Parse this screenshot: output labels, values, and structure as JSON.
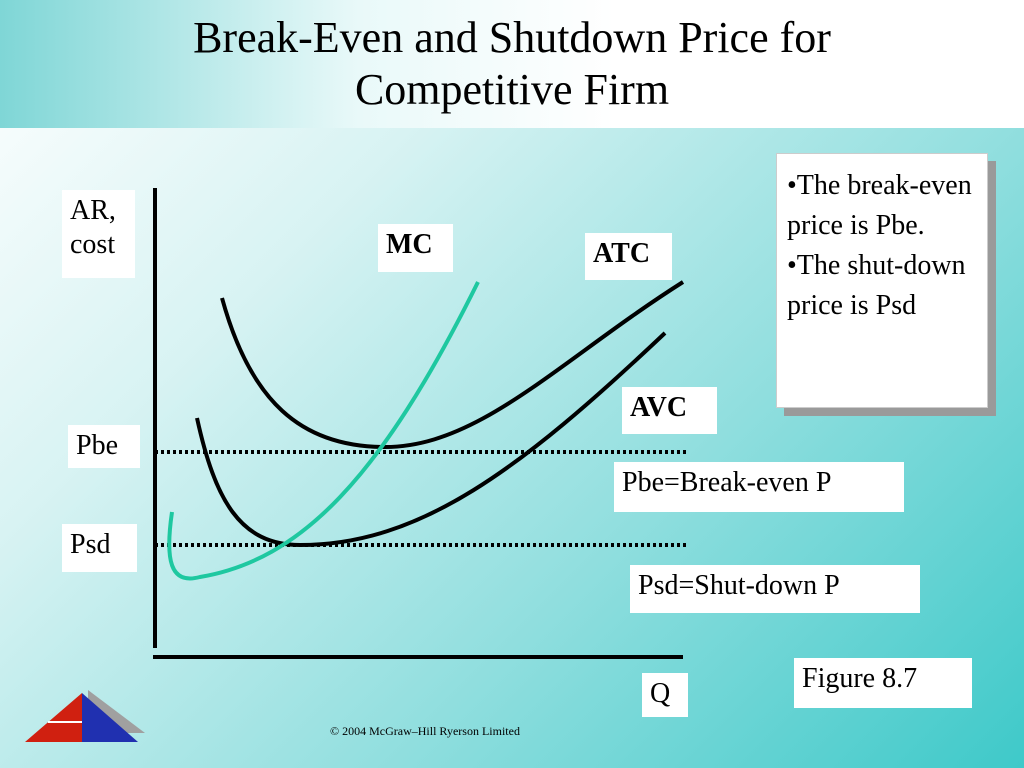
{
  "title": "Break-Even and Shutdown Price for Competitive Firm",
  "labels": {
    "y_axis": "AR, cost",
    "x_axis": "Q",
    "mc": "MC",
    "atc": "ATC",
    "avc": "AVC",
    "pbe": "Pbe",
    "psd": "Psd"
  },
  "legend": {
    "pbe": "Pbe=Break-even P",
    "psd": "Psd=Shut-down P"
  },
  "notes": [
    "•The break-even price is Pbe.",
    "•The shut-down price is Psd"
  ],
  "figure": "Figure 8.7",
  "footer": "© 2004 McGraw–Hill Ryerson Limited"
}
